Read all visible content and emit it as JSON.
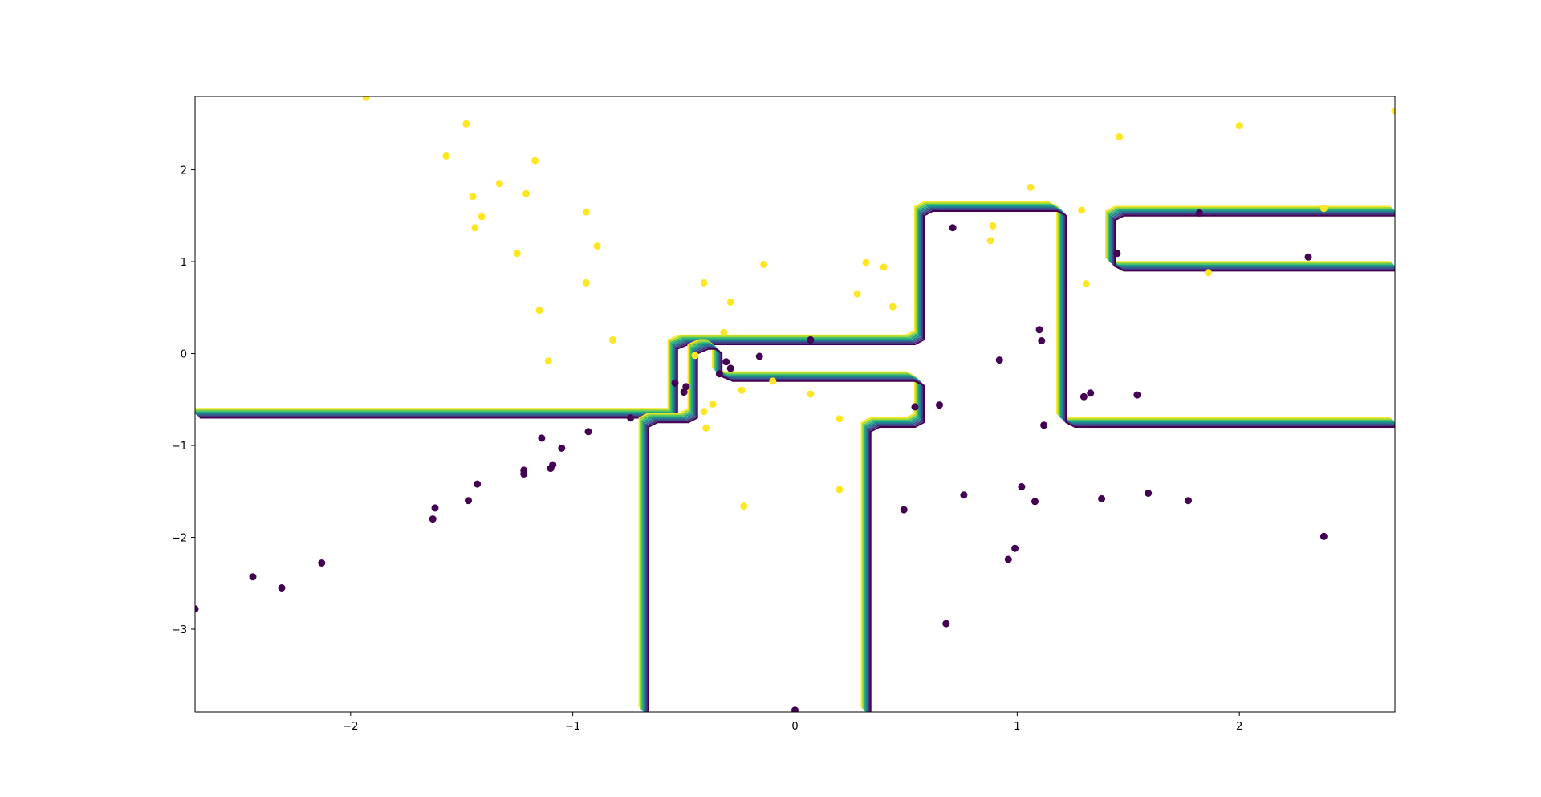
{
  "chart_data": {
    "type": "scatter",
    "title": "",
    "xlabel": "",
    "ylabel": "",
    "xlim": [
      -2.7,
      2.7
    ],
    "ylim": [
      -3.9,
      2.8
    ],
    "grid": false,
    "x_ticks": [
      -2,
      -1,
      0,
      1,
      2
    ],
    "y_ticks": [
      -3,
      -2,
      -1,
      0,
      1,
      2
    ],
    "x_tick_labels": [
      "−2",
      "−1",
      "0",
      "1",
      "2"
    ],
    "y_tick_labels": [
      "−3",
      "−2",
      "−1",
      "0",
      "1",
      "2"
    ],
    "colors": {
      "class_0": "#440154",
      "class_1": "#fde725",
      "contours": [
        "#fde725",
        "#a0da39",
        "#4ac16d",
        "#1fa187",
        "#277f8e",
        "#365c8d",
        "#46327e",
        "#440154"
      ]
    },
    "decision_boundaries": [
      [
        [
          -2.7,
          -0.65
        ],
        [
          -0.55,
          -0.65
        ],
        [
          -0.55,
          0.1
        ],
        [
          -0.5,
          0.15
        ],
        [
          0.52,
          0.15
        ],
        [
          0.56,
          0.2
        ],
        [
          0.56,
          1.55
        ],
        [
          0.6,
          1.6
        ],
        [
          1.16,
          1.6
        ],
        [
          1.2,
          1.55
        ],
        [
          1.2,
          -0.7
        ],
        [
          1.24,
          -0.75
        ],
        [
          2.7,
          -0.75
        ]
      ],
      [
        [
          -0.68,
          -3.9
        ],
        [
          -0.68,
          -0.75
        ],
        [
          -0.64,
          -0.7
        ],
        [
          -0.5,
          -0.7
        ],
        [
          -0.46,
          -0.65
        ],
        [
          -0.46,
          0.05
        ],
        [
          -0.41,
          0.1
        ],
        [
          -0.38,
          0.1
        ],
        [
          -0.35,
          0.05
        ],
        [
          -0.35,
          -0.2
        ],
        [
          -0.3,
          -0.25
        ],
        [
          0.52,
          -0.25
        ],
        [
          0.56,
          -0.3
        ],
        [
          0.56,
          -0.7
        ],
        [
          0.52,
          -0.75
        ],
        [
          0.36,
          -0.75
        ],
        [
          0.32,
          -0.8
        ],
        [
          0.32,
          -3.9
        ]
      ],
      [
        [
          2.7,
          1.55
        ],
        [
          1.46,
          1.55
        ],
        [
          1.42,
          1.5
        ],
        [
          1.42,
          1.0
        ],
        [
          1.46,
          0.95
        ],
        [
          2.7,
          0.95
        ]
      ]
    ],
    "series": [
      {
        "class": 0,
        "points": [
          [
            -2.7,
            -2.78
          ],
          [
            -2.44,
            -2.43
          ],
          [
            -2.31,
            -2.55
          ],
          [
            -2.13,
            -2.28
          ],
          [
            -1.63,
            -1.8
          ],
          [
            -1.62,
            -1.68
          ],
          [
            -1.47,
            -1.6
          ],
          [
            -1.43,
            -1.42
          ],
          [
            -1.22,
            -1.27
          ],
          [
            -1.22,
            -1.31
          ],
          [
            -1.14,
            -0.92
          ],
          [
            -1.1,
            -1.25
          ],
          [
            -1.09,
            -1.21
          ],
          [
            -1.05,
            -1.03
          ],
          [
            -0.93,
            -0.85
          ],
          [
            -0.74,
            -0.7
          ],
          [
            -0.54,
            -0.32
          ],
          [
            -0.5,
            -0.42
          ],
          [
            -0.49,
            -0.36
          ],
          [
            -0.34,
            -0.22
          ],
          [
            -0.31,
            -0.09
          ],
          [
            -0.29,
            -0.16
          ],
          [
            -0.16,
            -0.03
          ],
          [
            0.07,
            0.15
          ],
          [
            0.0,
            -3.88
          ],
          [
            0.49,
            -1.7
          ],
          [
            0.54,
            -0.58
          ],
          [
            0.65,
            -0.56
          ],
          [
            0.68,
            -2.94
          ],
          [
            0.71,
            1.37
          ],
          [
            0.76,
            -1.54
          ],
          [
            0.92,
            -0.07
          ],
          [
            0.96,
            -2.24
          ],
          [
            0.99,
            -2.12
          ],
          [
            1.02,
            -1.45
          ],
          [
            1.08,
            -1.61
          ],
          [
            1.1,
            0.26
          ],
          [
            1.11,
            0.14
          ],
          [
            1.12,
            -0.78
          ],
          [
            1.3,
            -0.47
          ],
          [
            1.33,
            -0.43
          ],
          [
            1.38,
            -1.58
          ],
          [
            1.45,
            1.09
          ],
          [
            1.54,
            -0.45
          ],
          [
            1.59,
            -1.52
          ],
          [
            1.77,
            -1.6
          ],
          [
            1.82,
            1.53
          ],
          [
            2.31,
            1.05
          ],
          [
            2.38,
            -1.99
          ]
        ]
      },
      {
        "class": 1,
        "points": [
          [
            -1.93,
            2.79
          ],
          [
            -1.57,
            2.15
          ],
          [
            -1.48,
            2.5
          ],
          [
            -1.45,
            1.71
          ],
          [
            -1.44,
            1.37
          ],
          [
            -1.41,
            1.49
          ],
          [
            -1.33,
            1.85
          ],
          [
            -1.25,
            1.09
          ],
          [
            -1.21,
            1.74
          ],
          [
            -1.17,
            2.1
          ],
          [
            -1.15,
            0.47
          ],
          [
            -1.11,
            -0.08
          ],
          [
            -0.94,
            1.54
          ],
          [
            -0.94,
            0.77
          ],
          [
            -0.89,
            1.17
          ],
          [
            -0.82,
            0.15
          ],
          [
            -0.45,
            -0.02
          ],
          [
            -0.41,
            0.77
          ],
          [
            -0.41,
            -0.63
          ],
          [
            -0.4,
            -0.81
          ],
          [
            -0.37,
            -0.55
          ],
          [
            -0.32,
            0.23
          ],
          [
            -0.29,
            0.56
          ],
          [
            -0.24,
            -0.4
          ],
          [
            -0.23,
            -1.66
          ],
          [
            -0.14,
            0.97
          ],
          [
            -0.1,
            -0.3
          ],
          [
            0.07,
            -0.44
          ],
          [
            0.2,
            -0.71
          ],
          [
            0.2,
            -1.48
          ],
          [
            0.28,
            0.65
          ],
          [
            0.32,
            0.99
          ],
          [
            0.4,
            0.94
          ],
          [
            0.44,
            0.51
          ],
          [
            0.88,
            1.23
          ],
          [
            0.89,
            1.39
          ],
          [
            1.06,
            1.81
          ],
          [
            1.29,
            1.56
          ],
          [
            1.31,
            0.76
          ],
          [
            1.46,
            2.36
          ],
          [
            1.86,
            0.88
          ],
          [
            2.0,
            2.48
          ],
          [
            2.38,
            1.58
          ],
          [
            2.7,
            2.64
          ]
        ]
      }
    ]
  }
}
